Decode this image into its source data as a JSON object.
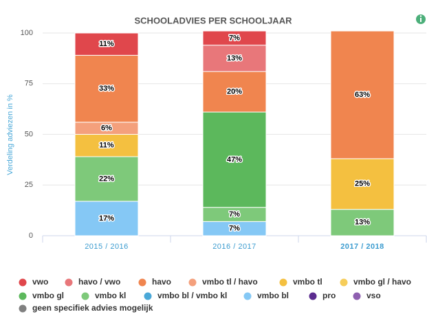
{
  "chart_data": {
    "type": "stacked_bar",
    "title": "SCHOOLADVIES PER SCHOOLJAAR",
    "y_label": "Verdeling adviezen in %",
    "categories": [
      "2015 / 2016",
      "2016 / 2017",
      "2017 / 2018"
    ],
    "selected_index": 2,
    "ylim": [
      0,
      100
    ],
    "yticks": [
      0,
      25,
      50,
      75,
      100
    ],
    "grid": true,
    "series": [
      {
        "name": "vwo",
        "color": "#e0474c",
        "values": [
          11,
          7,
          null
        ],
        "value_labels": [
          "11%",
          "7%",
          null
        ]
      },
      {
        "name": "havo / vwo",
        "color": "#e8777a",
        "values": [
          null,
          13,
          null
        ],
        "value_labels": [
          null,
          "13%",
          null
        ]
      },
      {
        "name": "havo",
        "color": "#f0854f",
        "values": [
          33,
          20,
          63
        ],
        "value_labels": [
          "33%",
          "20%",
          "63%"
        ]
      },
      {
        "name": "vmbo tl / havo",
        "color": "#f4a07c",
        "values": [
          6,
          null,
          null
        ],
        "value_labels": [
          "6%",
          null,
          null
        ]
      },
      {
        "name": "vmbo tl",
        "color": "#f4c040",
        "values": [
          11,
          null,
          25
        ],
        "value_labels": [
          "11%",
          null,
          "25%"
        ]
      },
      {
        "name": "vmbo gl / havo",
        "color": "#f6cd5a",
        "values": [
          null,
          null,
          null
        ]
      },
      {
        "name": "vmbo gl",
        "color": "#5cb85c",
        "values": [
          null,
          47,
          null
        ],
        "value_labels": [
          null,
          "47%",
          null
        ]
      },
      {
        "name": "vmbo kl",
        "color": "#7ec97a",
        "values": [
          22,
          7,
          13
        ],
        "value_labels": [
          "22%",
          "7%",
          "13%"
        ]
      },
      {
        "name": "vmbo bl / vmbo kl",
        "color": "#4aa8d8",
        "values": [
          null,
          null,
          null
        ]
      },
      {
        "name": "vmbo bl",
        "color": "#85c8f5",
        "values": [
          17,
          7,
          null
        ],
        "value_labels": [
          "17%",
          "7%",
          null
        ]
      },
      {
        "name": "pro",
        "color": "#5b2c8f",
        "values": [
          null,
          null,
          null
        ]
      },
      {
        "name": "vso",
        "color": "#8e5fb0",
        "values": [
          null,
          null,
          null
        ]
      },
      {
        "name": "geen specifiek advies mogelijk",
        "color": "#808080",
        "values": [
          null,
          null,
          null
        ]
      }
    ]
  }
}
